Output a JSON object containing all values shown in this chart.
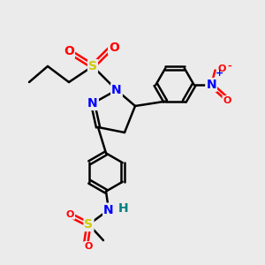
{
  "bg_color": "#ebebeb",
  "line_color": "#000000",
  "bond_width": 1.8,
  "atom_colors": {
    "N": "#0000ff",
    "O": "#ff0000",
    "S": "#cccc00",
    "H": "#008080",
    "C": "#000000",
    "plus": "#0000ff",
    "minus": "#ff0000"
  },
  "font_size": 10,
  "small_font_size": 8
}
